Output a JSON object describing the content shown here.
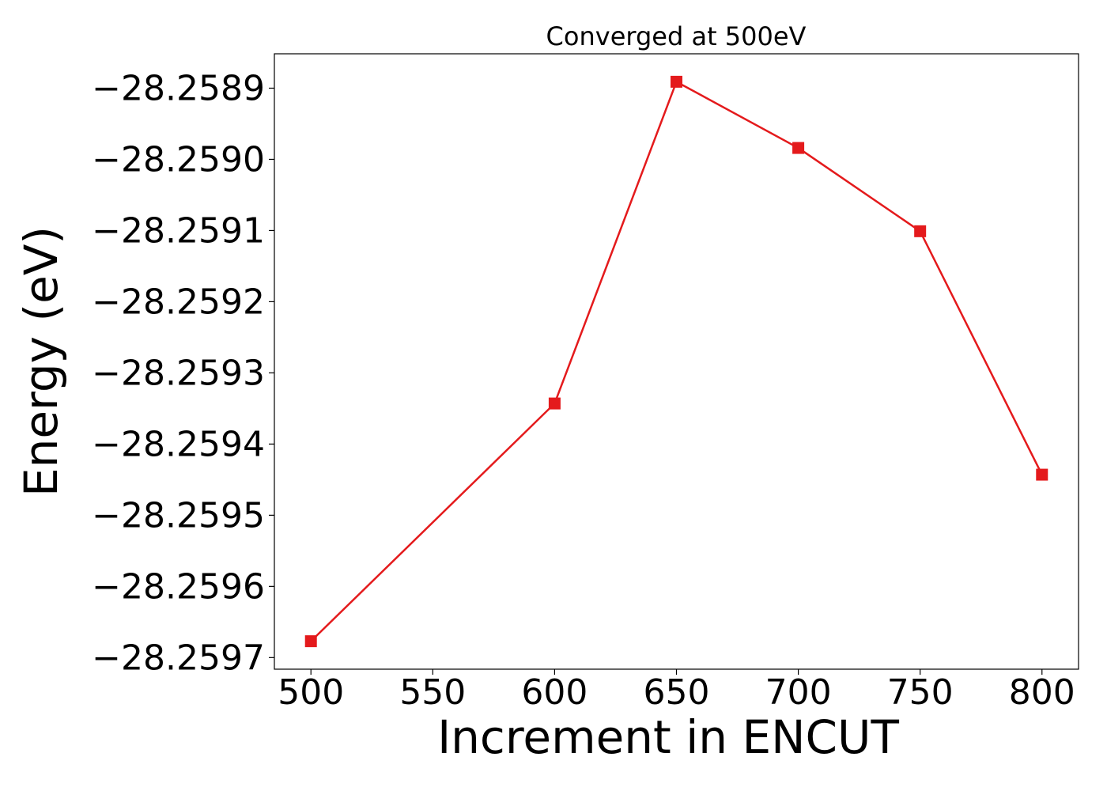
{
  "chart_data": {
    "type": "line",
    "title": "Converged at 500eV",
    "x_label": "Increment in ENCUT",
    "y_label": "Energy (eV)",
    "x": [
      500,
      600,
      650,
      700,
      750,
      800
    ],
    "values": [
      -28.259677,
      -28.259343,
      -28.258891,
      -28.258984,
      -28.259101,
      -28.259443
    ],
    "color": "#e41a1c",
    "marker": "square",
    "xlim": [
      485,
      815
    ],
    "xticks": [
      500,
      550,
      600,
      650,
      700,
      750,
      800
    ],
    "ylim": [
      -28.2597163,
      -28.2588517
    ],
    "yticks": [
      {
        "value": -28.2589,
        "label": "−28.2589"
      },
      {
        "value": -28.259,
        "label": "−28.2590"
      },
      {
        "value": -28.2591,
        "label": "−28.2591"
      },
      {
        "value": -28.2592,
        "label": "−28.2592"
      },
      {
        "value": -28.2593,
        "label": "−28.2593"
      },
      {
        "value": -28.2594,
        "label": "−28.2594"
      },
      {
        "value": -28.2595,
        "label": "−28.2595"
      },
      {
        "value": -28.2596,
        "label": "−28.2596"
      },
      {
        "value": -28.2597,
        "label": "−28.2597"
      }
    ],
    "grid": false
  }
}
